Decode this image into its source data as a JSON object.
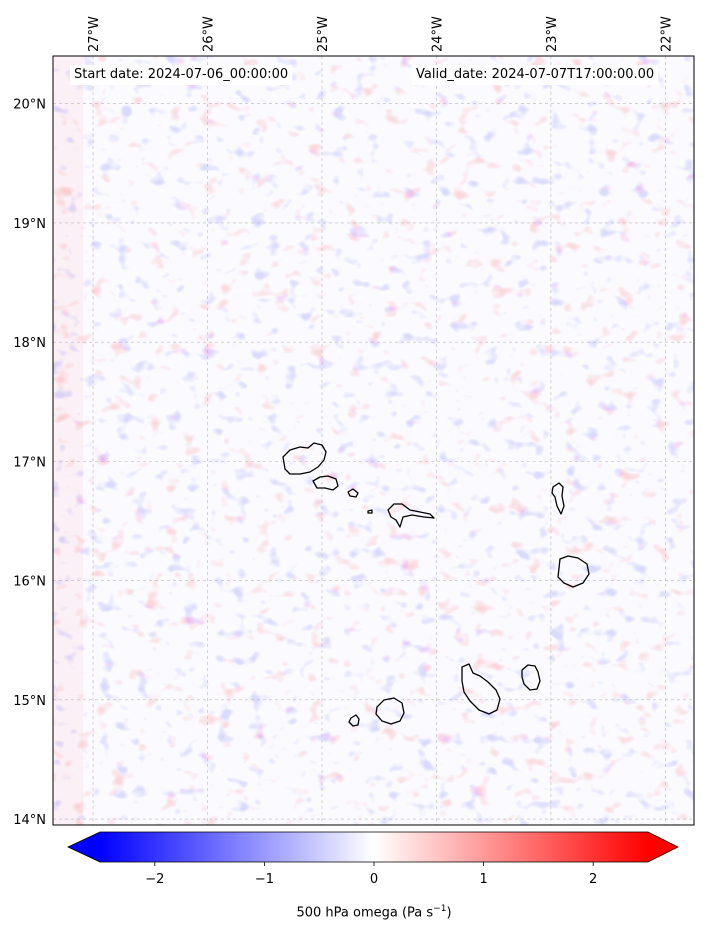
{
  "map": {
    "lon_range": [
      -27.35,
      -21.75
    ],
    "lat_range": [
      13.95,
      20.4
    ],
    "lon_ticks": [
      -27,
      -26,
      -25,
      -24,
      -23,
      -22
    ],
    "lat_ticks": [
      14,
      15,
      16,
      17,
      18,
      19,
      20
    ],
    "lon_tick_labels": [
      "27°W",
      "26°W",
      "25°W",
      "24°W",
      "23°W",
      "22°W"
    ],
    "lat_tick_labels": [
      "14°N",
      "15°N",
      "16°N",
      "17°N",
      "18°N",
      "19°N",
      "20°N"
    ],
    "gridlines": true,
    "field": "500 hPa omega",
    "coastline_color": "#000000",
    "features": [
      "Santo Antão",
      "São Vicente",
      "Santa Luzia",
      "São Nicolau",
      "Sal",
      "Boa Vista",
      "Maio",
      "Santiago",
      "Fogo",
      "Brava"
    ]
  },
  "annotations": {
    "start_date": "Start date: 2024-07-06_00:00:00",
    "valid_date": "Valid_date: 2024-07-07T17:00:00.00"
  },
  "colorbar": {
    "label": "500 hPa omega (Pa s",
    "label_exponent": "−1",
    "label_close": ")",
    "vmin": -2.5,
    "vmax": 2.5,
    "ticks": [
      -2,
      -1,
      0,
      1,
      2
    ],
    "tick_labels": [
      "−2",
      "−1",
      "0",
      "1",
      "2"
    ],
    "extend": "both",
    "cmap": "bwr",
    "colors": {
      "low": "#0000ff",
      "mid": "#ffffff",
      "high": "#ff0000"
    }
  }
}
